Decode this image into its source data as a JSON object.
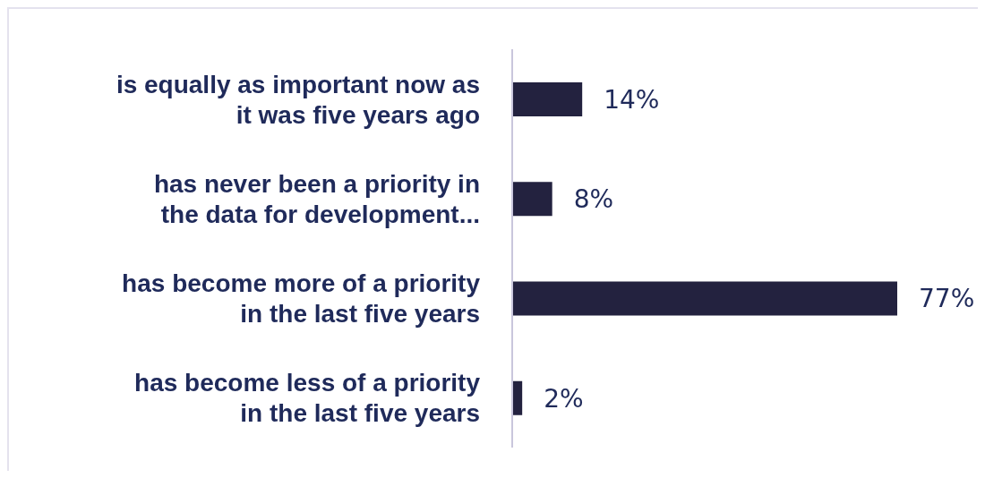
{
  "chart_data": {
    "type": "bar",
    "orientation": "horizontal",
    "categories": [
      "is equally as important now as it was five years ago",
      "has never been a priority in the data for development...",
      "has become more of a priority in the last five years",
      "has become less of a priority in the last five years"
    ],
    "values": [
      14,
      8,
      77,
      2
    ],
    "value_labels": [
      "14%",
      "8%",
      "77%",
      "2%"
    ],
    "color": "#23223f",
    "grid": false,
    "legend": false
  }
}
